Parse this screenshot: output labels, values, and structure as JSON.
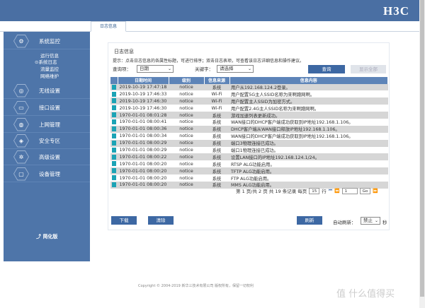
{
  "header": {
    "logo": "H3C"
  },
  "tabs": [
    {
      "label": "日志信息"
    }
  ],
  "sidebar": {
    "items": [
      {
        "label": "系统监控",
        "icon": "monitor-icon"
      },
      {
        "label": "无线设置",
        "icon": "wireless-icon"
      },
      {
        "label": "接口设置",
        "icon": "interface-icon"
      },
      {
        "label": "上网管理",
        "icon": "internet-icon"
      },
      {
        "label": "安全专区",
        "icon": "shield-icon"
      },
      {
        "label": "高级设置",
        "icon": "gear-icon"
      },
      {
        "label": "设备管理",
        "icon": "device-icon"
      }
    ],
    "subitems": [
      "运行信息",
      "系统日志",
      "流量监控",
      "网络维护"
    ],
    "selected_sub": "系统日志",
    "simple_mode": "简化版"
  },
  "panel": {
    "title": "日志信息",
    "hint": "提示：点击日志信息的各属性标题，可进行排序；双击日志表项，可查看该日志详细信息和操作建议。",
    "query_label": "查询项：",
    "query_value": "日期",
    "keyword_label": "关键字：",
    "keyword_value": "请选择",
    "search_button": "查询",
    "show_all_button": "显示全部",
    "columns": [
      "日期时间",
      "级别",
      "信息来源",
      "信息内容"
    ],
    "rows": [
      [
        "2019-10-19 17:47:18",
        "notice",
        "系统",
        "用户从192.168.124.2登录。"
      ],
      [
        "2019-10-19 17:46:33",
        "notice",
        "Wi-Fi",
        "用户配置5G主人SSID名称为來啊蹭网啊。"
      ],
      [
        "2019-10-19 17:46:30",
        "notice",
        "Wi-Fi",
        "用户配置主人SSID为加密方式。"
      ],
      [
        "2019-10-19 17:46:30",
        "notice",
        "Wi-Fi",
        "用户配置2.4G主人SSID名称为來啊蹭网啊。"
      ],
      [
        "1970-01-01 08:01:28",
        "notice",
        "系统",
        "游戏加速列表更新成功。"
      ],
      [
        "1970-01-01 08:00:41",
        "notice",
        "系统",
        "WAN接口的DHCP客户端成功获取到IP地址192.168.1.106。"
      ],
      [
        "1970-01-01 08:00:36",
        "notice",
        "系统",
        "DHCP客户端从WAN接口释放IP地址192.168.1.106。"
      ],
      [
        "1970-01-01 08:00:34",
        "notice",
        "系统",
        "WAN接口的DHCP客户端成功获取到IP地址192.168.1.106。"
      ],
      [
        "1970-01-01 08:00:29",
        "notice",
        "系统",
        "端口3物理连接已成功。"
      ],
      [
        "1970-01-01 08:00:29",
        "notice",
        "系统",
        "端口1物理连接已成功。"
      ],
      [
        "1970-01-01 08:00:22",
        "notice",
        "系统",
        "设置LAN接口的IP地址192.168.124.1/24。"
      ],
      [
        "1970-01-01 08:00:20",
        "notice",
        "系统",
        "RTSP ALG功能启用。"
      ],
      [
        "1970-01-01 08:00:20",
        "notice",
        "系统",
        "TFTP ALG功能启用。"
      ],
      [
        "1970-01-01 08:00:20",
        "notice",
        "系统",
        "FTP ALG功能启用。"
      ],
      [
        "1970-01-01 08:00:20",
        "notice",
        "系统",
        "MMS ALG功能启用。"
      ]
    ],
    "pager": {
      "text": "第 1 页/共 2 页  共 19 条记录  每页",
      "per_page": "15",
      "row_label": "行",
      "page_input": "1",
      "go": "Go"
    },
    "download_button": "下载",
    "clear_button": "清除",
    "refresh_button": "刷新",
    "auto_refresh_label": "自动刷新：",
    "auto_refresh_value": "禁止",
    "seconds": "秒"
  },
  "footer": {
    "copyright": "Copyright © 2004-2019 新华三技术有限公司 版权所有，保留一切权利",
    "watermark": "值 什么值得买"
  }
}
